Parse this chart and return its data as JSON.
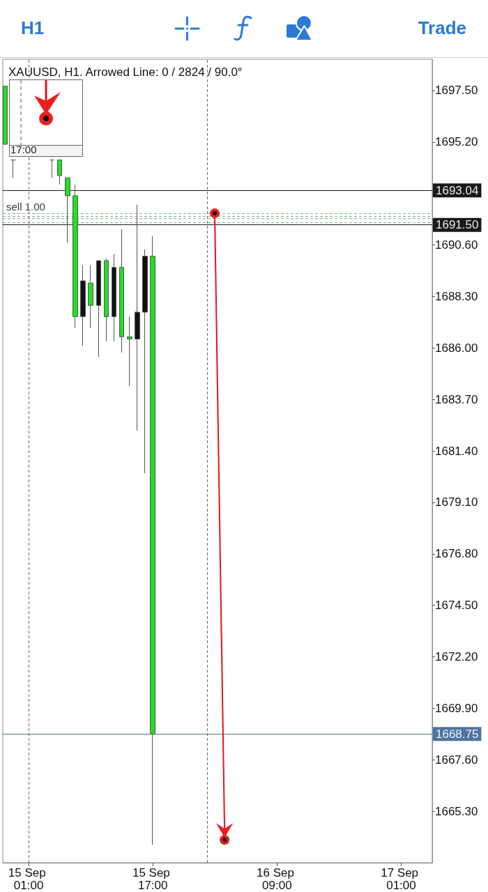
{
  "chart_data": {
    "type": "candlestick",
    "title": "XAUUSD, H1. Arrowed Line: 0 / 2824 / 90.0°",
    "annotations": [
      "H1",
      "Trade",
      "17:00"
    ],
    "x": [
      "--09-14T22:00",
      "--09-14T23:00",
      "--09-15T04:00",
      "--09-15T05:00",
      "--09-15T06:00",
      "--09-15T07:00",
      "--09-15T08:00",
      "--09-15T09:00",
      "--09-15T10:00",
      "--09-15T11:00",
      "--09-15T12:00",
      "--09-15T13:00",
      "--09-15T14:00",
      "--09-15T15:00",
      "--09-15T16:00",
      "--09-15T17:00"
    ],
    "ohlc": [
      [
        1697.7,
        1697.7,
        1695.1,
        1695.1
      ],
      [
        1694.4,
        1694.4,
        1693.6,
        1694.4
      ],
      [
        1694.4,
        1694.4,
        1693.6,
        1694.4
      ],
      [
        1694.4,
        1694.4,
        1693.3,
        1693.7
      ],
      [
        1693.6,
        1693.6,
        1690.7,
        1692.8
      ],
      [
        1692.8,
        1693.3,
        1686.9,
        1687.4
      ],
      [
        1687.4,
        1689.7,
        1686.1,
        1689.0
      ],
      [
        1688.9,
        1689.7,
        1686.9,
        1687.9
      ],
      [
        1687.9,
        1689.9,
        1685.6,
        1689.9
      ],
      [
        1689.9,
        1690.0,
        1686.3,
        1687.4
      ],
      [
        1687.4,
        1690.2,
        1686.3,
        1689.6
      ],
      [
        1689.6,
        1691.3,
        1685.8,
        1686.5
      ],
      [
        1686.5,
        1687.4,
        1684.3,
        1686.4
      ],
      [
        1686.4,
        1692.4,
        1682.3,
        1687.6
      ],
      [
        1687.6,
        1690.4,
        1680.4,
        1690.1
      ],
      [
        1690.1,
        1691.0,
        1663.8,
        1668.75
      ]
    ],
    "colors": [
      "#22e022",
      "#555555",
      "#555555",
      "#22e022",
      "#22e022",
      "#22e022",
      "#111111",
      "#22e022",
      "#111111",
      "#22e022",
      "#111111",
      "#22e022",
      "#22e022",
      "#111111",
      "#111111",
      "#22e022"
    ],
    "xlim": [
      "--09-14T21:40",
      "--09-17T05:00"
    ],
    "xticks": [
      {
        "value": "--09-15T01:00",
        "label": "15 Sep 01:00"
      },
      {
        "value": "--09-15T17:00",
        "label": "15 Sep 17:00"
      },
      {
        "value": "--09-16T09:00",
        "label": "16 Sep 09:00"
      },
      {
        "value": "--09-17T01:00",
        "label": "17 Sep 01:00"
      }
    ],
    "ylim": [
      1663.0,
      1698.9
    ],
    "yticks": [
      {
        "value": 1697.5,
        "label": "1697.50"
      },
      {
        "value": 1695.2,
        "label": "1695.20"
      },
      {
        "value": 1690.6,
        "label": "1690.60"
      },
      {
        "value": 1688.3,
        "label": "1688.30"
      },
      {
        "value": 1686.0,
        "label": "1686.00"
      },
      {
        "value": 1683.7,
        "label": "1683.70"
      },
      {
        "value": 1681.4,
        "label": "1681.40"
      },
      {
        "value": 1679.1,
        "label": "1679.10"
      },
      {
        "value": 1676.8,
        "label": "1676.80"
      },
      {
        "value": 1674.5,
        "label": "1674.50"
      },
      {
        "value": 1672.2,
        "label": "1672.20"
      },
      {
        "value": 1669.9,
        "label": "1669.90"
      },
      {
        "value": 1667.6,
        "label": "1667.60"
      },
      {
        "value": 1665.3,
        "label": "1665.30"
      }
    ],
    "ref_lines": [
      {
        "axis": "y",
        "value": 1693.04,
        "label": "1693.04",
        "color": "#000000"
      },
      {
        "axis": "y",
        "value": 1691.5,
        "label": "1691.50",
        "color": "#000000"
      },
      {
        "axis": "y",
        "value": 1692.0,
        "label": "sell 1.00",
        "color": "#6fae6f",
        "line_style": "dashed"
      },
      {
        "axis": "y",
        "value": 1691.9,
        "color": "#6fae6f",
        "line_style": "dashed"
      },
      {
        "axis": "y",
        "value": 1691.8,
        "color": "#6fae6f",
        "line_style": "dashed"
      },
      {
        "axis": "y",
        "value": 1691.6,
        "color": "#6fae6f",
        "line_style": "dashed"
      },
      {
        "axis": "y",
        "value": 1668.75,
        "label": "1668.75",
        "color": "#3b6596"
      },
      {
        "axis": "x",
        "value": "--09-15T01:00",
        "color": "#555555",
        "line_style": "dashed"
      },
      {
        "axis": "x",
        "value": "--09-16T00:00",
        "color": "#555555",
        "line_style": "dashed"
      }
    ]
  }
}
